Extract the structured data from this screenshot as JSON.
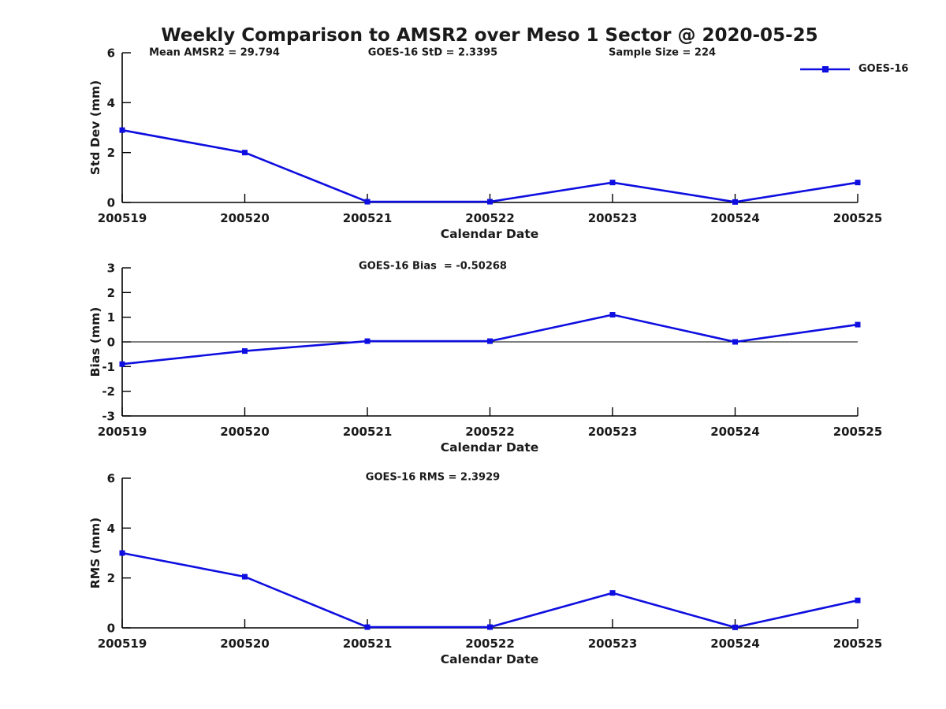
{
  "title": "Weekly Comparison to AMSR2 over Meso 1 Sector @ 2020-05-25",
  "legend": {
    "label": "GOES-16"
  },
  "colors": {
    "series": "#0e0ee0",
    "axis": "#000000",
    "text": "#1a1a1a"
  },
  "chart_data": [
    {
      "type": "line",
      "name": "stddev",
      "ylabel": "Std Dev (mm)",
      "xlabel": "Calendar Date",
      "ylim": [
        0,
        6
      ],
      "yticks": [
        0,
        2,
        4,
        6
      ],
      "grid": false,
      "legend_position": "top-right",
      "categories": [
        "200519",
        "200520",
        "200521",
        "200522",
        "200523",
        "200524",
        "200525"
      ],
      "series": [
        {
          "name": "GOES-16",
          "values": [
            2.9,
            2.0,
            0.03,
            0.03,
            0.8,
            0.02,
            0.8
          ]
        }
      ],
      "annotations": [
        {
          "text": "Mean AMSR2 = 29.794"
        },
        {
          "text": "GOES-16 StD = 2.3395"
        },
        {
          "text": "Sample Size = 224"
        }
      ]
    },
    {
      "type": "line",
      "name": "bias",
      "ylabel": "Bias (mm)",
      "xlabel": "Calendar Date",
      "ylim": [
        -3,
        3
      ],
      "yticks": [
        -3,
        -2,
        -1,
        0,
        1,
        2,
        3
      ],
      "grid": false,
      "zero_line": true,
      "categories": [
        "200519",
        "200520",
        "200521",
        "200522",
        "200523",
        "200524",
        "200525"
      ],
      "series": [
        {
          "name": "GOES-16",
          "values": [
            -0.9,
            -0.37,
            0.03,
            0.03,
            1.1,
            0.0,
            0.7
          ]
        }
      ],
      "annotations": [
        {
          "text": "GOES-16 Bias  = -0.50268"
        }
      ]
    },
    {
      "type": "line",
      "name": "rms",
      "ylabel": "RMS (mm)",
      "xlabel": "Calendar Date",
      "ylim": [
        0,
        6
      ],
      "yticks": [
        0,
        2,
        4,
        6
      ],
      "grid": false,
      "categories": [
        "200519",
        "200520",
        "200521",
        "200522",
        "200523",
        "200524",
        "200525"
      ],
      "series": [
        {
          "name": "GOES-16",
          "values": [
            3.0,
            2.05,
            0.03,
            0.03,
            1.4,
            0.02,
            1.1
          ]
        }
      ],
      "annotations": [
        {
          "text": "GOES-16 RMS = 2.3929"
        }
      ]
    }
  ]
}
